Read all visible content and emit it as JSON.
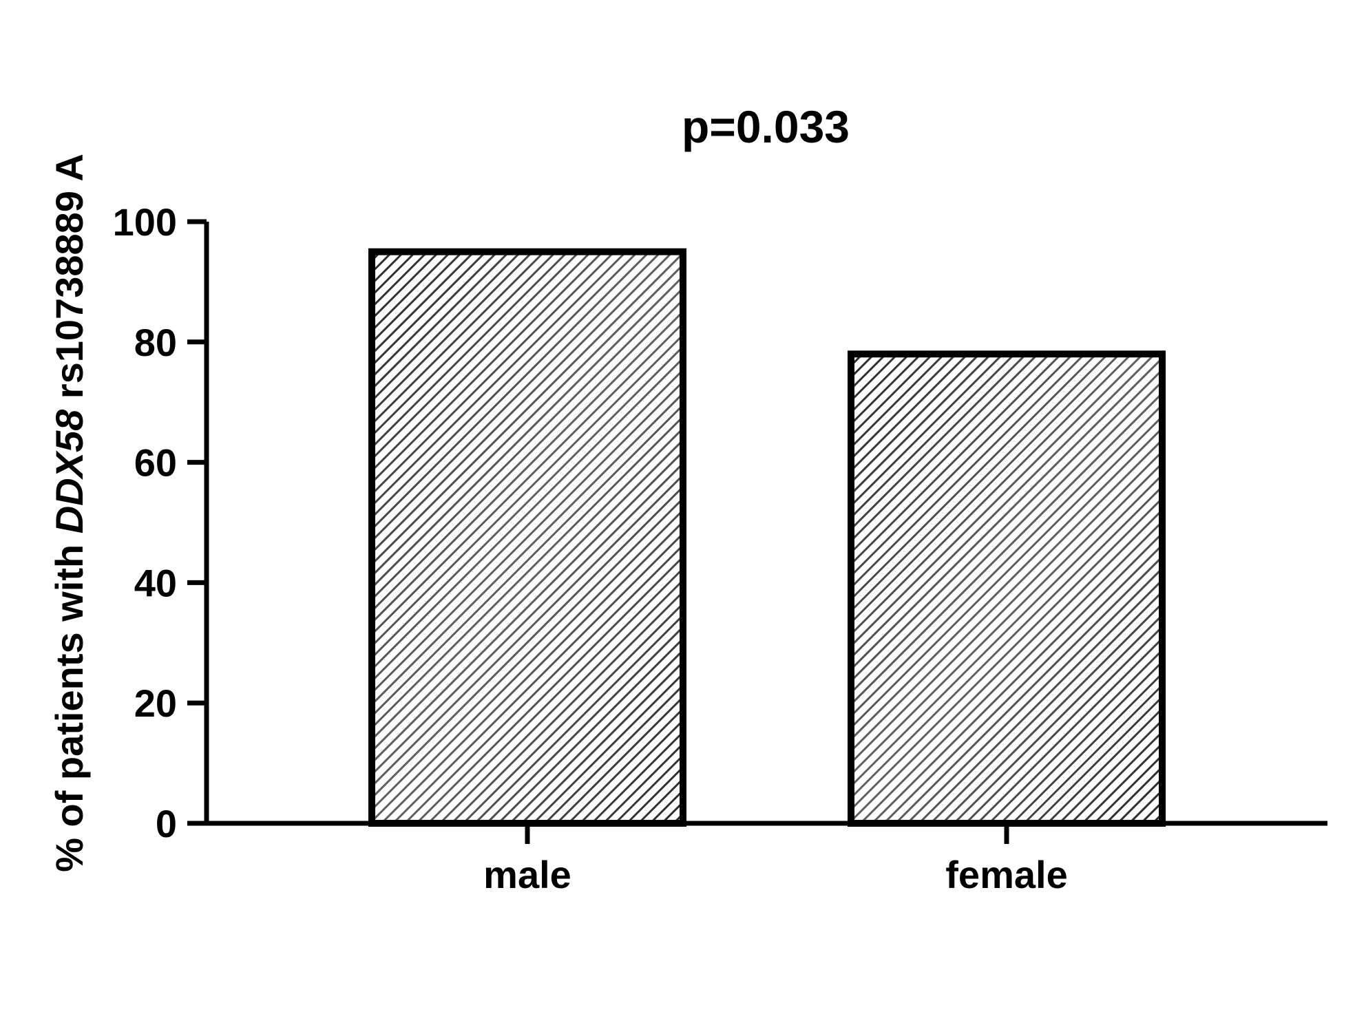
{
  "chart_data": {
    "type": "bar",
    "title": "",
    "annotation": "p=0.033",
    "categories": [
      "male",
      "female"
    ],
    "values": [
      95,
      78
    ],
    "xlabel": "",
    "ylabel_parts": [
      {
        "text": "% of patients with ",
        "italic": false
      },
      {
        "text": "DDX58",
        "italic": true
      },
      {
        "text": " rs10738889 A",
        "italic": false
      }
    ],
    "ylim": [
      0,
      100
    ],
    "yticks": [
      0,
      20,
      40,
      60,
      80,
      100
    ],
    "ytick_labels": [
      "0",
      "20",
      "40",
      "60",
      "80",
      "100"
    ],
    "bar_fill": "diagonal-hatch",
    "colors": {
      "axis": "#000000",
      "bar_edge": "#000000",
      "hatch_line": "#2a2a2a",
      "hatch_bg": "#ffffff"
    },
    "grid": false,
    "legend": "none"
  }
}
